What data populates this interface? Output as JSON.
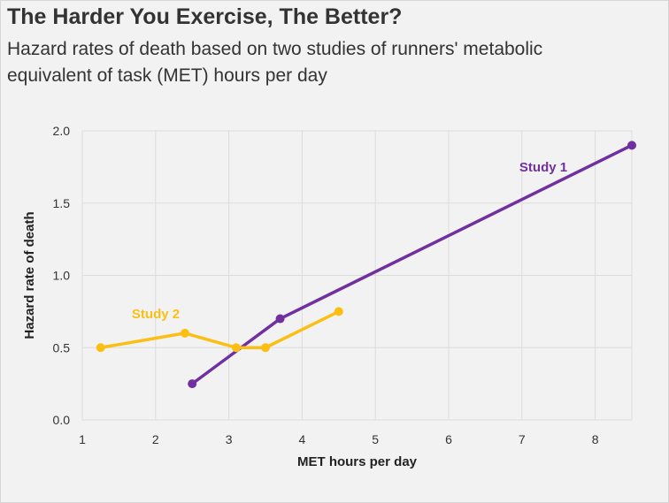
{
  "title": "The Harder You Exercise, The Better?",
  "subtitle": "Hazard rates of death based on two studies of runners' metabolic equivalent of task (MET) hours per day",
  "chart_data": {
    "type": "line",
    "xlabel": "MET hours per day",
    "ylabel": "Hazard rate of death",
    "xlim": [
      1,
      8.5
    ],
    "ylim": [
      0,
      2.0
    ],
    "xticks": [
      1,
      2,
      3,
      4,
      5,
      6,
      7,
      8
    ],
    "yticks": [
      "0.0",
      "0.5",
      "1.0",
      "1.5",
      "2.0"
    ],
    "grid": true,
    "series": [
      {
        "name": "Study 1",
        "color": "#7030a0",
        "points": [
          {
            "x": 2.5,
            "y": 0.25
          },
          {
            "x": 3.7,
            "y": 0.7
          },
          {
            "x": 8.5,
            "y": 1.9
          }
        ]
      },
      {
        "name": "Study 2",
        "color": "#fbbf14",
        "points": [
          {
            "x": 1.25,
            "y": 0.5
          },
          {
            "x": 2.4,
            "y": 0.6
          },
          {
            "x": 3.1,
            "y": 0.5
          },
          {
            "x": 3.5,
            "y": 0.5
          },
          {
            "x": 4.5,
            "y": 0.75
          }
        ]
      }
    ]
  }
}
